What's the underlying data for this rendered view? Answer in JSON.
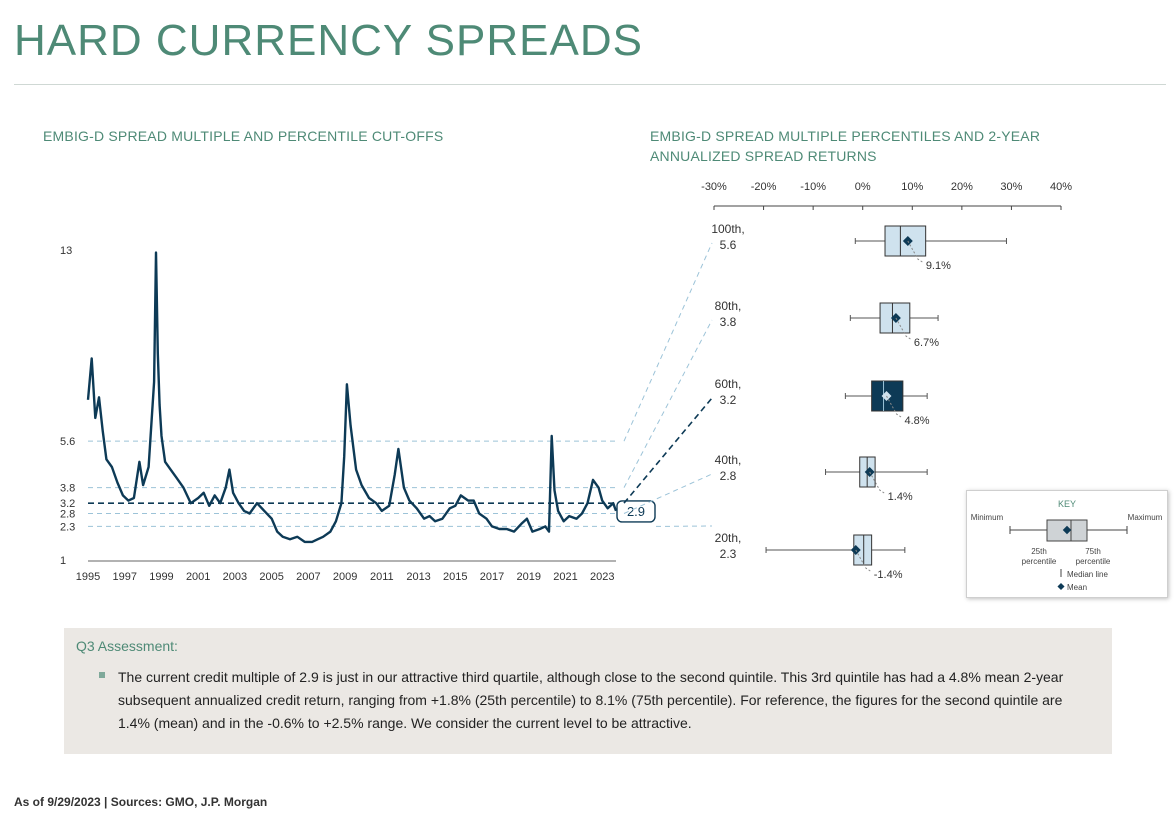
{
  "page": {
    "title": "HARD CURRENCY SPREADS",
    "footer": "As of 9/29/2023 | Sources: GMO, J.P. Morgan"
  },
  "colors": {
    "accent": "#4e8a76",
    "navy": "#0d3a56",
    "light_box": "#cfe2ee",
    "dashed": "#9cc3d8"
  },
  "chart_data": [
    {
      "type": "line",
      "title": "EMBIG-D SPREAD MULTIPLE AND PERCENTILE CUT-OFFS",
      "xlabel": "",
      "ylabel": "",
      "x_ticks": [
        "1995",
        "1997",
        "1999",
        "2001",
        "2003",
        "2005",
        "2007",
        "2009",
        "2011",
        "2013",
        "2015",
        "2017",
        "2019",
        "2021",
        "2023"
      ],
      "y_ticks": [
        1,
        2.3,
        2.8,
        3.2,
        3.8,
        5.6,
        13
      ],
      "xlim": [
        1995,
        2023.75
      ],
      "ylim": [
        1,
        13
      ],
      "current_value_label": "2.9",
      "percentile_lines": [
        {
          "percentile": "20th",
          "value": 2.3
        },
        {
          "percentile": "40th",
          "value": 2.8
        },
        {
          "percentile": "60th",
          "value": 3.2,
          "highlight": true
        },
        {
          "percentile": "80th",
          "value": 3.8
        },
        {
          "percentile": "100th",
          "value": 5.6
        }
      ],
      "series": [
        {
          "x": [
            1995.0,
            1995.2,
            1995.4,
            1995.6,
            1995.8,
            1996.0,
            1996.3,
            1996.6,
            1996.9,
            1997.2,
            1997.5,
            1997.8,
            1998.0,
            1998.3,
            1998.6,
            1998.7,
            1998.8,
            1998.9,
            1999.0,
            1999.2,
            1999.5,
            1999.8,
            2000.2,
            2000.6,
            2001.0,
            2001.3,
            2001.6,
            2001.9,
            2002.2,
            2002.5,
            2002.7,
            2002.9,
            2003.2,
            2003.5,
            2003.8,
            2004.2,
            2004.6,
            2005.0,
            2005.3,
            2005.6,
            2006.0,
            2006.4,
            2006.8,
            2007.2,
            2007.5,
            2007.8,
            2008.2,
            2008.5,
            2008.8,
            2008.95,
            2009.1,
            2009.3,
            2009.6,
            2009.9,
            2010.3,
            2010.7,
            2011.0,
            2011.4,
            2011.7,
            2011.9,
            2012.2,
            2012.5,
            2012.9,
            2013.3,
            2013.6,
            2013.9,
            2014.3,
            2014.7,
            2015.0,
            2015.3,
            2015.7,
            2016.0,
            2016.3,
            2016.7,
            2017.0,
            2017.4,
            2017.8,
            2018.2,
            2018.6,
            2018.9,
            2019.2,
            2019.6,
            2019.9,
            2020.1,
            2020.25,
            2020.4,
            2020.6,
            2020.9,
            2021.2,
            2021.6,
            2021.9,
            2022.2,
            2022.5,
            2022.8,
            2023.0,
            2023.3,
            2023.6,
            2023.75
          ],
          "y": [
            7.2,
            8.8,
            6.5,
            7.3,
            6.0,
            4.9,
            4.6,
            4.0,
            3.5,
            3.3,
            3.4,
            4.8,
            3.9,
            4.6,
            7.9,
            12.9,
            9.0,
            7.0,
            5.8,
            4.8,
            4.5,
            4.2,
            3.8,
            3.2,
            3.4,
            3.6,
            3.1,
            3.5,
            3.2,
            3.8,
            4.5,
            3.6,
            3.2,
            2.9,
            2.8,
            3.2,
            2.9,
            2.6,
            2.1,
            1.9,
            1.8,
            1.9,
            1.7,
            1.7,
            1.8,
            1.9,
            2.1,
            2.5,
            3.2,
            5.0,
            7.8,
            6.2,
            4.5,
            3.9,
            3.4,
            3.2,
            2.9,
            3.1,
            4.3,
            5.3,
            3.8,
            3.3,
            3.0,
            2.6,
            2.7,
            2.5,
            2.6,
            3.0,
            3.1,
            3.5,
            3.3,
            3.3,
            2.8,
            2.6,
            2.3,
            2.2,
            2.2,
            2.1,
            2.4,
            2.6,
            2.1,
            2.2,
            2.3,
            2.1,
            5.8,
            3.7,
            2.9,
            2.5,
            2.7,
            2.6,
            2.8,
            3.2,
            4.1,
            3.8,
            3.3,
            3.0,
            3.2,
            2.9
          ]
        }
      ]
    },
    {
      "type": "box",
      "title": "EMBIG-D SPREAD MULTIPLE PERCENTILES AND 2-YEAR ANNUALIZED SPREAD RETURNS",
      "xlabel": "",
      "ylabel": "",
      "x_ticks": [
        "-30%",
        "-20%",
        "-10%",
        "0%",
        "10%",
        "20%",
        "30%",
        "40%"
      ],
      "xlim": [
        -30,
        40
      ],
      "boxes": [
        {
          "label_line1": "100th,",
          "label_line2": "5.6",
          "min": -1.5,
          "q1": 4.5,
          "median": 7.6,
          "q3": 12.7,
          "max": 29.0,
          "mean": 9.1,
          "mean_label": "9.1%",
          "highlight": false
        },
        {
          "label_line1": "80th,",
          "label_line2": "3.8",
          "min": -2.5,
          "q1": 3.5,
          "median": 6.0,
          "q3": 9.5,
          "max": 15.2,
          "mean": 6.7,
          "mean_label": "6.7%",
          "highlight": false
        },
        {
          "label_line1": "60th,",
          "label_line2": "3.2",
          "min": -3.5,
          "q1": 1.8,
          "median": 4.2,
          "q3": 8.1,
          "max": 13.0,
          "mean": 4.8,
          "mean_label": "4.8%",
          "highlight": true
        },
        {
          "label_line1": "40th,",
          "label_line2": "2.8",
          "min": -7.5,
          "q1": -0.6,
          "median": 0.9,
          "q3": 2.5,
          "max": 13.0,
          "mean": 1.4,
          "mean_label": "1.4%",
          "highlight": false
        },
        {
          "label_line1": "20th,",
          "label_line2": "2.3",
          "min": -19.5,
          "q1": -1.8,
          "median": 0.2,
          "q3": 1.8,
          "max": 8.5,
          "mean": -1.4,
          "mean_label": "-1.4%",
          "highlight": false
        }
      ]
    }
  ],
  "key": {
    "title": "KEY",
    "minimum": "Minimum",
    "maximum": "Maximum",
    "q1_line1": "25th",
    "q1_line2": "percentile",
    "q3_line1": "75th",
    "q3_line2": "percentile",
    "median": "Median line",
    "mean": "Mean"
  },
  "assessment": {
    "title": "Q3 Assessment:",
    "text": "The current credit multiple of 2.9 is just in our attractive third quartile, although close to the second quintile. This 3rd quintile has had a 4.8% mean 2-year subsequent annualized credit return, ranging from +1.8% (25th percentile) to 8.1% (75th percentile).  For reference, the figures for the second quintile are 1.4% (mean) and in the -0.6% to +2.5% range.  We consider the current level to be attractive."
  }
}
